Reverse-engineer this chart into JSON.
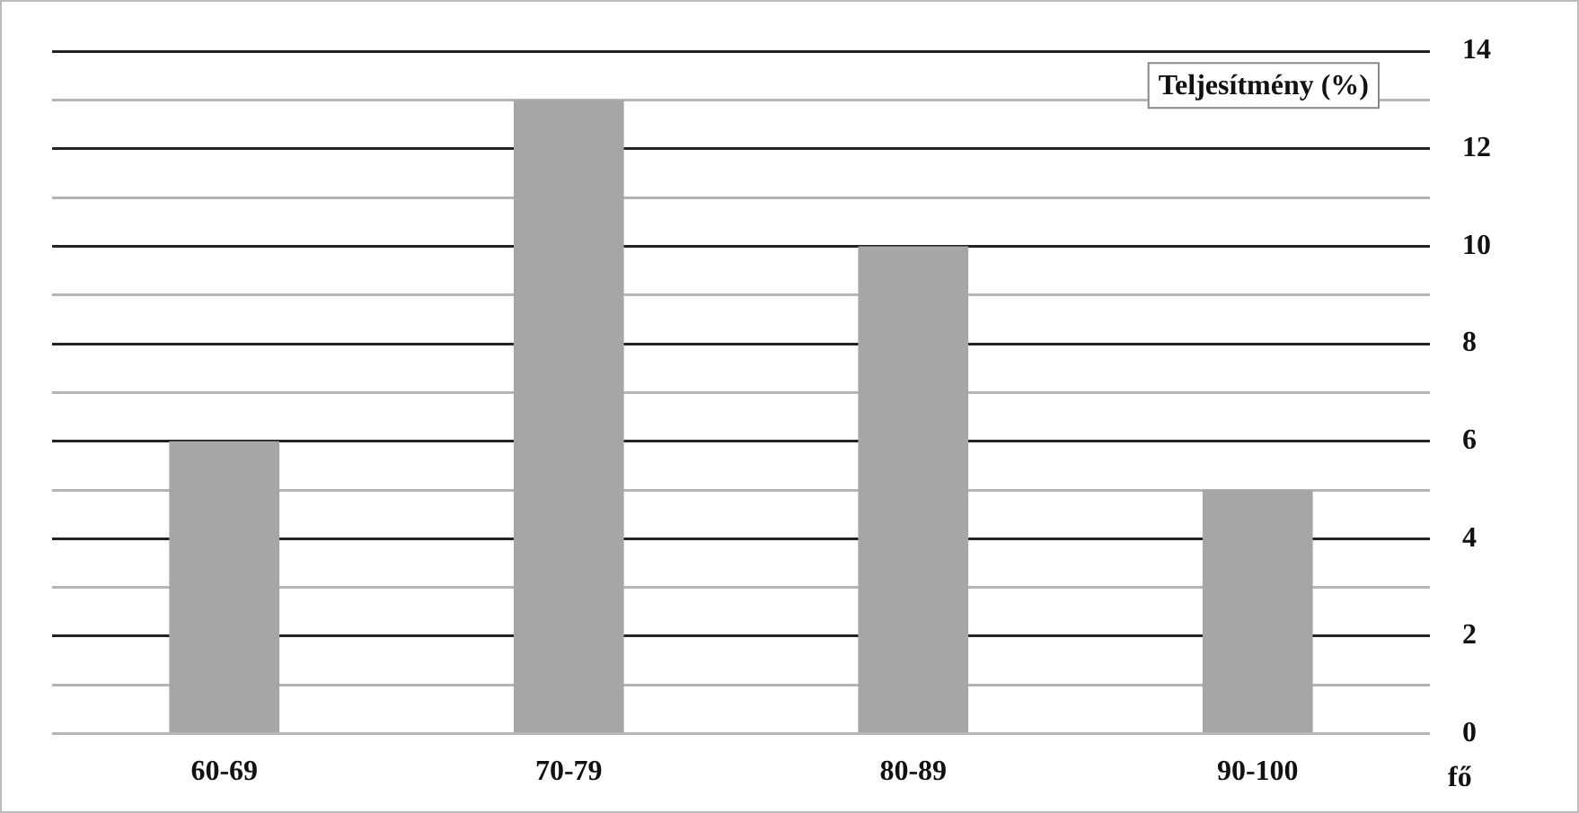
{
  "chart_data": {
    "type": "bar",
    "categories": [
      "60-69",
      "70-79",
      "80-89",
      "90-100"
    ],
    "values": [
      6,
      13,
      10,
      5
    ],
    "color": "#a6a6a6",
    "ylabel": "fő",
    "annotations": [
      "Teljesítmény (%)"
    ],
    "ylim": [
      0,
      14
    ],
    "yticks": [
      0,
      {
        "value": 1,
        "label": null
      },
      2,
      {
        "value": 3,
        "label": null
      },
      4,
      {
        "value": 5,
        "label": null
      },
      6,
      {
        "value": 7,
        "label": null
      },
      8,
      {
        "value": 9,
        "label": null
      },
      10,
      {
        "value": 11,
        "label": null
      },
      12,
      {
        "value": 13,
        "label": null
      },
      14
    ],
    "grid": "y",
    "legend": false
  }
}
